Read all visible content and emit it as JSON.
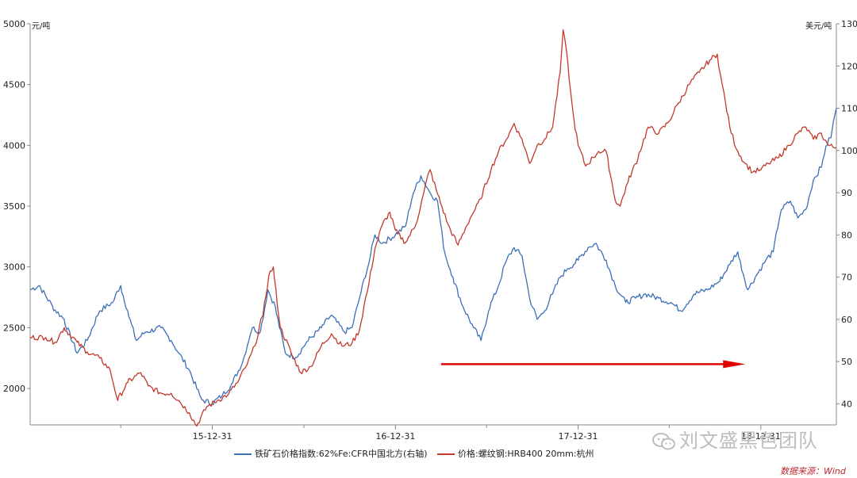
{
  "chart_data": {
    "type": "line",
    "left_axis_unit": "元/吨",
    "right_axis_unit": "美元/吨",
    "y_left_range": [
      1700,
      5000
    ],
    "y_left_ticks": [
      "2000",
      "2500",
      "3000",
      "3500",
      "4000",
      "4500",
      "5000"
    ],
    "y_right_range": [
      35,
      130
    ],
    "y_right_ticks": [
      "40",
      "50",
      "60",
      "70",
      "80",
      "90",
      "100",
      "110",
      "120",
      "130"
    ],
    "x_range": [
      "2015-01-01",
      "2019-05-31"
    ],
    "x_tick_labels": [
      "15-12-31",
      "16-12-31",
      "17-12-31",
      "18-12-31"
    ],
    "series": [
      {
        "name": "铁矿石价格指数:62%Fe:CFR中国北方(右轴)",
        "axis": "right",
        "color": "#3b6fb6",
        "points": [
          [
            "2015-01-01",
            67
          ],
          [
            "2015-01-20",
            68
          ],
          [
            "2015-02-15",
            63
          ],
          [
            "2015-03-10",
            60
          ],
          [
            "2015-04-05",
            52
          ],
          [
            "2015-04-25",
            55
          ],
          [
            "2015-05-20",
            62
          ],
          [
            "2015-06-15",
            64
          ],
          [
            "2015-07-01",
            68
          ],
          [
            "2015-07-15",
            62
          ],
          [
            "2015-08-01",
            55
          ],
          [
            "2015-08-20",
            57
          ],
          [
            "2015-09-20",
            58
          ],
          [
            "2015-10-10",
            55
          ],
          [
            "2015-10-25",
            52
          ],
          [
            "2015-11-15",
            48
          ],
          [
            "2015-12-10",
            41
          ],
          [
            "2015-12-31",
            40
          ],
          [
            "2016-01-20",
            42
          ],
          [
            "2016-02-10",
            45
          ],
          [
            "2016-03-01",
            50
          ],
          [
            "2016-03-20",
            58
          ],
          [
            "2016-04-05",
            57
          ],
          [
            "2016-04-20",
            67
          ],
          [
            "2016-05-05",
            63
          ],
          [
            "2016-05-25",
            52
          ],
          [
            "2016-06-15",
            51
          ],
          [
            "2016-07-10",
            55
          ],
          [
            "2016-08-05",
            58
          ],
          [
            "2016-08-25",
            61
          ],
          [
            "2016-09-20",
            57
          ],
          [
            "2016-10-05",
            58
          ],
          [
            "2016-10-20",
            65
          ],
          [
            "2016-11-05",
            72
          ],
          [
            "2016-11-20",
            80
          ],
          [
            "2016-12-05",
            78
          ],
          [
            "2016-12-31",
            80
          ],
          [
            "2017-01-20",
            82
          ],
          [
            "2017-02-05",
            90
          ],
          [
            "2017-02-20",
            94
          ],
          [
            "2017-03-10",
            90
          ],
          [
            "2017-03-25",
            88
          ],
          [
            "2017-04-10",
            75
          ],
          [
            "2017-04-25",
            70
          ],
          [
            "2017-05-15",
            63
          ],
          [
            "2017-06-05",
            58
          ],
          [
            "2017-06-20",
            55
          ],
          [
            "2017-07-05",
            62
          ],
          [
            "2017-07-25",
            68
          ],
          [
            "2017-08-10",
            74
          ],
          [
            "2017-08-25",
            77
          ],
          [
            "2017-09-10",
            75
          ],
          [
            "2017-09-25",
            65
          ],
          [
            "2017-10-10",
            60
          ],
          [
            "2017-10-25",
            62
          ],
          [
            "2017-11-10",
            66
          ],
          [
            "2017-11-25",
            70
          ],
          [
            "2017-12-10",
            72
          ],
          [
            "2017-12-31",
            74
          ],
          [
            "2018-01-20",
            77
          ],
          [
            "2018-02-05",
            78
          ],
          [
            "2018-02-25",
            74
          ],
          [
            "2018-03-15",
            68
          ],
          [
            "2018-04-05",
            64
          ],
          [
            "2018-04-25",
            65
          ],
          [
            "2018-05-15",
            66
          ],
          [
            "2018-06-10",
            65
          ],
          [
            "2018-07-05",
            64
          ],
          [
            "2018-07-25",
            62
          ],
          [
            "2018-08-20",
            66
          ],
          [
            "2018-09-15",
            67
          ],
          [
            "2018-10-10",
            69
          ],
          [
            "2018-10-30",
            73
          ],
          [
            "2018-11-15",
            76
          ],
          [
            "2018-12-05",
            67
          ],
          [
            "2018-12-20",
            70
          ],
          [
            "2019-01-10",
            74
          ],
          [
            "2019-01-25",
            76
          ],
          [
            "2019-02-10",
            86
          ],
          [
            "2019-02-28",
            88
          ],
          [
            "2019-03-15",
            84
          ],
          [
            "2019-03-31",
            86
          ],
          [
            "2019-04-15",
            93
          ],
          [
            "2019-05-01",
            96
          ],
          [
            "2019-05-10",
            101
          ],
          [
            "2019-05-20",
            103
          ],
          [
            "2019-05-31",
            110
          ]
        ]
      },
      {
        "name": "价格:螺纹钢:HRB400 20mm:杭州",
        "axis": "left",
        "color": "#c0392b",
        "points": [
          [
            "2015-01-01",
            2420
          ],
          [
            "2015-02-01",
            2420
          ],
          [
            "2015-02-20",
            2380
          ],
          [
            "2015-03-10",
            2500
          ],
          [
            "2015-04-05",
            2380
          ],
          [
            "2015-04-25",
            2300
          ],
          [
            "2015-05-20",
            2250
          ],
          [
            "2015-06-10",
            2150
          ],
          [
            "2015-06-25",
            1900
          ],
          [
            "2015-07-15",
            2050
          ],
          [
            "2015-08-10",
            2130
          ],
          [
            "2015-08-25",
            2020
          ],
          [
            "2015-09-20",
            1960
          ],
          [
            "2015-10-10",
            1960
          ],
          [
            "2015-10-25",
            1900
          ],
          [
            "2015-11-15",
            1800
          ],
          [
            "2015-11-30",
            1690
          ],
          [
            "2015-12-20",
            1850
          ],
          [
            "2016-01-10",
            1900
          ],
          [
            "2016-02-01",
            1950
          ],
          [
            "2016-02-20",
            2050
          ],
          [
            "2016-03-10",
            2200
          ],
          [
            "2016-03-25",
            2350
          ],
          [
            "2016-04-10",
            2600
          ],
          [
            "2016-04-22",
            2930
          ],
          [
            "2016-05-01",
            3000
          ],
          [
            "2016-05-15",
            2500
          ],
          [
            "2016-06-05",
            2300
          ],
          [
            "2016-06-25",
            2130
          ],
          [
            "2016-07-15",
            2180
          ],
          [
            "2016-08-05",
            2350
          ],
          [
            "2016-08-25",
            2450
          ],
          [
            "2016-09-15",
            2350
          ],
          [
            "2016-10-05",
            2370
          ],
          [
            "2016-10-20",
            2480
          ],
          [
            "2016-11-05",
            2800
          ],
          [
            "2016-11-20",
            3150
          ],
          [
            "2016-12-05",
            3350
          ],
          [
            "2016-12-20",
            3450
          ],
          [
            "2016-12-31",
            3300
          ],
          [
            "2017-01-20",
            3200
          ],
          [
            "2017-02-10",
            3350
          ],
          [
            "2017-02-25",
            3600
          ],
          [
            "2017-03-10",
            3800
          ],
          [
            "2017-03-25",
            3600
          ],
          [
            "2017-04-15",
            3350
          ],
          [
            "2017-05-05",
            3180
          ],
          [
            "2017-05-20",
            3320
          ],
          [
            "2017-06-05",
            3450
          ],
          [
            "2017-06-20",
            3560
          ],
          [
            "2017-07-10",
            3800
          ],
          [
            "2017-07-25",
            3950
          ],
          [
            "2017-08-10",
            4050
          ],
          [
            "2017-08-25",
            4180
          ],
          [
            "2017-09-10",
            4050
          ],
          [
            "2017-09-25",
            3850
          ],
          [
            "2017-10-10",
            4000
          ],
          [
            "2017-10-25",
            4050
          ],
          [
            "2017-11-10",
            4150
          ],
          [
            "2017-11-25",
            4600
          ],
          [
            "2017-12-01",
            4950
          ],
          [
            "2017-12-10",
            4700
          ],
          [
            "2017-12-20",
            4300
          ],
          [
            "2017-12-31",
            4000
          ],
          [
            "2018-01-15",
            3830
          ],
          [
            "2018-01-31",
            3900
          ],
          [
            "2018-02-10",
            3950
          ],
          [
            "2018-02-25",
            3950
          ],
          [
            "2018-03-15",
            3550
          ],
          [
            "2018-03-25",
            3500
          ],
          [
            "2018-04-10",
            3700
          ],
          [
            "2018-04-30",
            3900
          ],
          [
            "2018-05-20",
            4150
          ],
          [
            "2018-06-10",
            4100
          ],
          [
            "2018-07-01",
            4200
          ],
          [
            "2018-07-20",
            4350
          ],
          [
            "2018-08-10",
            4500
          ],
          [
            "2018-08-30",
            4600
          ],
          [
            "2018-09-20",
            4700
          ],
          [
            "2018-10-05",
            4750
          ],
          [
            "2018-10-15",
            4500
          ],
          [
            "2018-10-30",
            4150
          ],
          [
            "2018-11-15",
            3950
          ],
          [
            "2018-11-30",
            3850
          ],
          [
            "2018-12-15",
            3780
          ],
          [
            "2018-12-31",
            3800
          ],
          [
            "2019-01-15",
            3850
          ],
          [
            "2019-02-05",
            3900
          ],
          [
            "2019-02-25",
            4000
          ],
          [
            "2019-03-15",
            4100
          ],
          [
            "2019-03-31",
            4150
          ],
          [
            "2019-04-15",
            4050
          ],
          [
            "2019-05-01",
            4100
          ],
          [
            "2019-05-15",
            4000
          ],
          [
            "2019-05-31",
            3980
          ]
        ]
      }
    ],
    "annotation": {
      "type": "arrow",
      "color": "#e00000",
      "from": [
        "2017-04-01",
        2200
      ],
      "to": [
        "2018-11-30",
        2200
      ]
    }
  },
  "watermark": "刘文盛黑色团队",
  "source": "数据来源：Wind"
}
